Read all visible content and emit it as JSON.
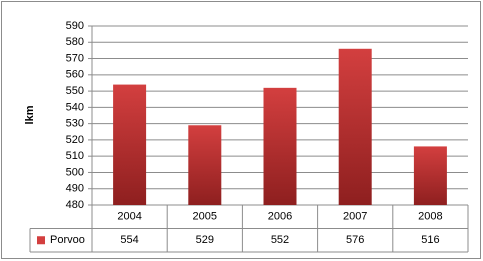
{
  "chart_data": {
    "type": "bar",
    "y_label": "lkm",
    "categories": [
      "2004",
      "2005",
      "2006",
      "2007",
      "2008"
    ],
    "series": [
      {
        "name": "Porvoo",
        "color": "#d33f3f",
        "values": [
          554,
          529,
          552,
          576,
          516
        ]
      }
    ],
    "ylim": [
      480,
      590
    ],
    "yticks": [
      480,
      490,
      500,
      510,
      520,
      530,
      540,
      550,
      560,
      570,
      580,
      590
    ],
    "grid": true
  }
}
